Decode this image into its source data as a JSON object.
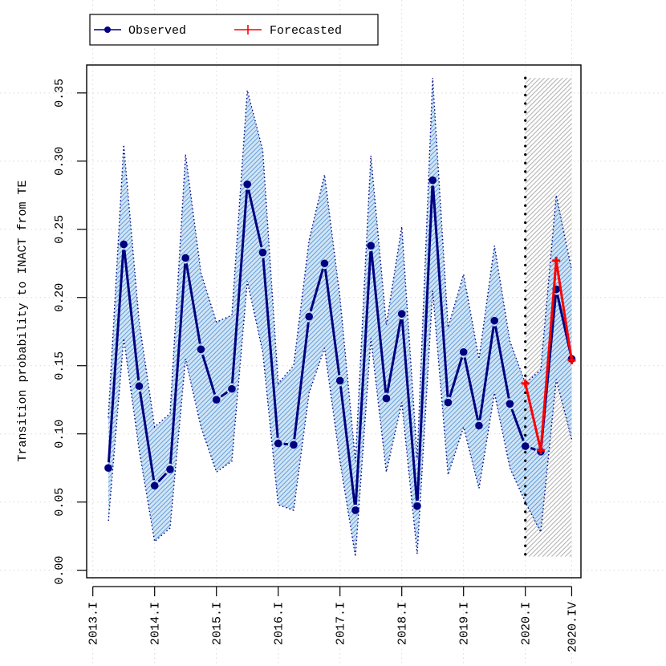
{
  "chart_data": {
    "type": "line",
    "title": "",
    "xlabel": "",
    "ylabel": "Transition probability to INACT from TE",
    "ylim": [
      0,
      0.36
    ],
    "yticks": [
      "0.00",
      "0.05",
      "0.10",
      "0.15",
      "0.20",
      "0.25",
      "0.30",
      "0.35"
    ],
    "xticks": [
      {
        "label": "2013.I",
        "t": 2013.0
      },
      {
        "label": "2014.I",
        "t": 2014.0
      },
      {
        "label": "2015.I",
        "t": 2015.0
      },
      {
        "label": "2016.I",
        "t": 2016.0
      },
      {
        "label": "2017.I",
        "t": 2017.0
      },
      {
        "label": "2018.I",
        "t": 2018.0
      },
      {
        "label": "2019.I",
        "t": 2019.0
      },
      {
        "label": "2020.I",
        "t": 2020.0
      },
      {
        "label": "2020.IV",
        "t": 2020.75
      }
    ],
    "grid": true,
    "legend_position": "top-left, outside plot",
    "forecast_start": 2020.0,
    "series": [
      {
        "name": "Observed",
        "color": "#000080",
        "x": [
          2013.25,
          2013.5,
          2013.75,
          2014.0,
          2014.25,
          2014.5,
          2014.75,
          2015.0,
          2015.25,
          2015.5,
          2015.75,
          2016.0,
          2016.25,
          2016.5,
          2016.75,
          2017.0,
          2017.25,
          2017.5,
          2017.75,
          2018.0,
          2018.25,
          2018.5,
          2018.75,
          2019.0,
          2019.25,
          2019.5,
          2019.75,
          2020.0,
          2020.25,
          2020.5,
          2020.75
        ],
        "y": [
          0.075,
          0.239,
          0.135,
          0.062,
          0.074,
          0.229,
          0.162,
          0.125,
          0.133,
          0.283,
          0.233,
          0.093,
          0.092,
          0.186,
          0.225,
          0.139,
          0.044,
          0.238,
          0.126,
          0.188,
          0.047,
          0.286,
          0.123,
          0.16,
          0.106,
          0.183,
          0.122,
          0.091,
          0.087,
          0.206,
          0.155
        ]
      },
      {
        "name": "Forecasted",
        "color": "#ff0000",
        "x": [
          2020.0,
          2020.25,
          2020.5,
          2020.75
        ],
        "y": [
          0.137,
          0.088,
          0.227,
          0.154
        ]
      }
    ],
    "band": {
      "color": "#5b9bd5",
      "x": [
        2013.25,
        2013.5,
        2013.75,
        2014.0,
        2014.25,
        2014.5,
        2014.75,
        2015.0,
        2015.25,
        2015.5,
        2015.75,
        2016.0,
        2016.25,
        2016.5,
        2016.75,
        2017.0,
        2017.25,
        2017.5,
        2017.75,
        2018.0,
        2018.25,
        2018.5,
        2018.75,
        2019.0,
        2019.25,
        2019.5,
        2019.75,
        2020.0,
        2020.25,
        2020.5,
        2020.75
      ],
      "upper": [
        0.112,
        0.312,
        0.182,
        0.105,
        0.115,
        0.305,
        0.218,
        0.182,
        0.187,
        0.352,
        0.308,
        0.137,
        0.15,
        0.242,
        0.29,
        0.2,
        0.08,
        0.304,
        0.18,
        0.252,
        0.082,
        0.361,
        0.178,
        0.217,
        0.155,
        0.238,
        0.168,
        0.137,
        0.147,
        0.275,
        0.22
      ],
      "lower": [
        0.035,
        0.17,
        0.088,
        0.021,
        0.031,
        0.155,
        0.105,
        0.072,
        0.08,
        0.212,
        0.16,
        0.048,
        0.044,
        0.13,
        0.163,
        0.08,
        0.01,
        0.17,
        0.072,
        0.123,
        0.012,
        0.205,
        0.07,
        0.105,
        0.06,
        0.13,
        0.075,
        0.05,
        0.028,
        0.14,
        0.096
      ]
    },
    "forecast_region": {
      "x0": 2020.0,
      "x1": 2020.75,
      "y0": 0.01,
      "y1": 0.361,
      "color": "#bdbdbd"
    }
  }
}
